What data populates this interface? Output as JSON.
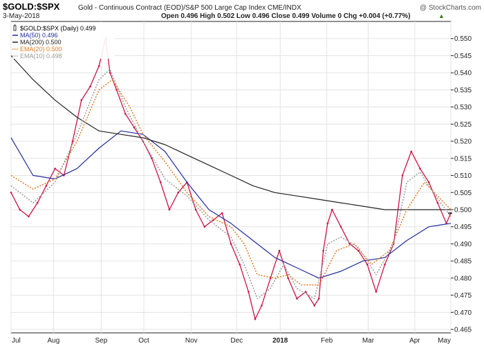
{
  "header": {
    "symbol": "$GOLD:$SPX",
    "description": "Gold - Continuous Contract (EOD)/S&P 500 Large Cap Index  CME/INDX",
    "watermark": "@ StockCharts.com",
    "date": "3-May-2018",
    "quote": "Open 0.496  High 0.502  Low 0.496  Close 0.499  Volume 0  Chg +0.004 (+0.77%)",
    "quote_color": "#3a7a1f",
    "up_arrow": "▲"
  },
  "legend": [
    {
      "label": "$GOLD:$SPX (Daily) 0.499",
      "color": "#000000",
      "style": "candle"
    },
    {
      "label": "MA(50) 0.496",
      "color": "#1f2a9c",
      "style": "solid"
    },
    {
      "label": "MA(200) 0.500",
      "color": "#222222",
      "style": "solid"
    },
    {
      "label": "EMA(20) 0.500",
      "color": "#e07a1f",
      "style": "dotted"
    },
    {
      "label": "EMA(10) 0.498",
      "color": "#999999",
      "style": "dotted"
    }
  ],
  "chart_data": {
    "type": "line",
    "y_ticks": [
      "0.465",
      "0.470",
      "0.475",
      "0.480",
      "0.485",
      "0.490",
      "0.495",
      "0.500",
      "0.505",
      "0.510",
      "0.515",
      "0.520",
      "0.525",
      "0.530",
      "0.535",
      "0.540",
      "0.545",
      "0.550"
    ],
    "ylim": [
      0.464,
      0.555
    ],
    "x_ticks": [
      {
        "label": "Jul",
        "t": 0.0,
        "bold": false
      },
      {
        "label": "Aug",
        "t": 0.0965,
        "bold": false
      },
      {
        "label": "Sep",
        "t": 0.205,
        "bold": false
      },
      {
        "label": "Oct",
        "t": 0.302,
        "bold": false
      },
      {
        "label": "Nov",
        "t": 0.41,
        "bold": false
      },
      {
        "label": "Dec",
        "t": 0.513,
        "bold": false
      },
      {
        "label": "2018",
        "t": 0.612,
        "bold": true
      },
      {
        "label": "Feb",
        "t": 0.718,
        "bold": false
      },
      {
        "label": "Mar",
        "t": 0.812,
        "bold": false
      },
      {
        "label": "Apr",
        "t": 0.918,
        "bold": false
      },
      {
        "label": "May",
        "t": 1.0,
        "bold": false
      }
    ],
    "grid": true,
    "series": [
      {
        "name": "$GOLD:$SPX",
        "color": "#cc1144",
        "points": [
          [
            0.0,
            0.505
          ],
          [
            0.02,
            0.5
          ],
          [
            0.04,
            0.498
          ],
          [
            0.06,
            0.502
          ],
          [
            0.08,
            0.507
          ],
          [
            0.1,
            0.512
          ],
          [
            0.12,
            0.51
          ],
          [
            0.14,
            0.52
          ],
          [
            0.16,
            0.532
          ],
          [
            0.18,
            0.536
          ],
          [
            0.2,
            0.542
          ],
          [
            0.215,
            0.55
          ],
          [
            0.225,
            0.54
          ],
          [
            0.24,
            0.535
          ],
          [
            0.26,
            0.528
          ],
          [
            0.28,
            0.524
          ],
          [
            0.3,
            0.52
          ],
          [
            0.32,
            0.515
          ],
          [
            0.34,
            0.508
          ],
          [
            0.36,
            0.5
          ],
          [
            0.38,
            0.505
          ],
          [
            0.4,
            0.508
          ],
          [
            0.42,
            0.5
          ],
          [
            0.44,
            0.495
          ],
          [
            0.46,
            0.497
          ],
          [
            0.48,
            0.499
          ],
          [
            0.5,
            0.49
          ],
          [
            0.52,
            0.484
          ],
          [
            0.54,
            0.476
          ],
          [
            0.555,
            0.468
          ],
          [
            0.57,
            0.472
          ],
          [
            0.59,
            0.48
          ],
          [
            0.61,
            0.488
          ],
          [
            0.63,
            0.48
          ],
          [
            0.65,
            0.474
          ],
          [
            0.67,
            0.476
          ],
          [
            0.69,
            0.472
          ],
          [
            0.7,
            0.474
          ],
          [
            0.71,
            0.488
          ],
          [
            0.72,
            0.496
          ],
          [
            0.73,
            0.5
          ],
          [
            0.75,
            0.495
          ],
          [
            0.77,
            0.49
          ],
          [
            0.79,
            0.488
          ],
          [
            0.81,
            0.484
          ],
          [
            0.83,
            0.476
          ],
          [
            0.85,
            0.484
          ],
          [
            0.87,
            0.49
          ],
          [
            0.89,
            0.51
          ],
          [
            0.91,
            0.517
          ],
          [
            0.93,
            0.512
          ],
          [
            0.95,
            0.508
          ],
          [
            0.97,
            0.502
          ],
          [
            0.99,
            0.496
          ],
          [
            1.0,
            0.499
          ]
        ]
      },
      {
        "name": "MA(50)",
        "color": "#1f2a9c",
        "points": [
          [
            0.0,
            0.521
          ],
          [
            0.05,
            0.51
          ],
          [
            0.1,
            0.509
          ],
          [
            0.15,
            0.512
          ],
          [
            0.2,
            0.518
          ],
          [
            0.25,
            0.523
          ],
          [
            0.3,
            0.522
          ],
          [
            0.35,
            0.517
          ],
          [
            0.4,
            0.508
          ],
          [
            0.45,
            0.5
          ],
          [
            0.5,
            0.496
          ],
          [
            0.55,
            0.491
          ],
          [
            0.6,
            0.486
          ],
          [
            0.65,
            0.483
          ],
          [
            0.7,
            0.48
          ],
          [
            0.75,
            0.482
          ],
          [
            0.8,
            0.485
          ],
          [
            0.85,
            0.486
          ],
          [
            0.9,
            0.491
          ],
          [
            0.95,
            0.495
          ],
          [
            1.0,
            0.496
          ]
        ]
      },
      {
        "name": "MA(200)",
        "color": "#222222",
        "points": [
          [
            0.0,
            0.545
          ],
          [
            0.05,
            0.538
          ],
          [
            0.1,
            0.532
          ],
          [
            0.15,
            0.527
          ],
          [
            0.2,
            0.523
          ],
          [
            0.25,
            0.522
          ],
          [
            0.3,
            0.521
          ],
          [
            0.35,
            0.519
          ],
          [
            0.4,
            0.516
          ],
          [
            0.45,
            0.513
          ],
          [
            0.5,
            0.51
          ],
          [
            0.55,
            0.507
          ],
          [
            0.6,
            0.505
          ],
          [
            0.65,
            0.504
          ],
          [
            0.7,
            0.503
          ],
          [
            0.75,
            0.502
          ],
          [
            0.8,
            0.501
          ],
          [
            0.85,
            0.5
          ],
          [
            0.9,
            0.5
          ],
          [
            0.95,
            0.5
          ],
          [
            1.0,
            0.5
          ]
        ]
      },
      {
        "name": "EMA(20)",
        "color": "#e07a1f",
        "points": [
          [
            0.0,
            0.51
          ],
          [
            0.05,
            0.506
          ],
          [
            0.1,
            0.509
          ],
          [
            0.15,
            0.52
          ],
          [
            0.2,
            0.535
          ],
          [
            0.23,
            0.538
          ],
          [
            0.27,
            0.53
          ],
          [
            0.3,
            0.522
          ],
          [
            0.35,
            0.514
          ],
          [
            0.4,
            0.505
          ],
          [
            0.45,
            0.498
          ],
          [
            0.5,
            0.495
          ],
          [
            0.53,
            0.49
          ],
          [
            0.56,
            0.481
          ],
          [
            0.6,
            0.48
          ],
          [
            0.63,
            0.481
          ],
          [
            0.66,
            0.478
          ],
          [
            0.7,
            0.478
          ],
          [
            0.74,
            0.488
          ],
          [
            0.78,
            0.49
          ],
          [
            0.82,
            0.484
          ],
          [
            0.86,
            0.488
          ],
          [
            0.9,
            0.5
          ],
          [
            0.94,
            0.508
          ],
          [
            0.97,
            0.504
          ],
          [
            1.0,
            0.5
          ]
        ]
      },
      {
        "name": "EMA(10)",
        "color": "#999999",
        "points": [
          [
            0.0,
            0.507
          ],
          [
            0.05,
            0.502
          ],
          [
            0.1,
            0.508
          ],
          [
            0.15,
            0.522
          ],
          [
            0.2,
            0.538
          ],
          [
            0.225,
            0.541
          ],
          [
            0.26,
            0.53
          ],
          [
            0.3,
            0.52
          ],
          [
            0.35,
            0.509
          ],
          [
            0.4,
            0.504
          ],
          [
            0.45,
            0.497
          ],
          [
            0.5,
            0.492
          ],
          [
            0.53,
            0.484
          ],
          [
            0.56,
            0.474
          ],
          [
            0.59,
            0.477
          ],
          [
            0.62,
            0.484
          ],
          [
            0.65,
            0.477
          ],
          [
            0.69,
            0.474
          ],
          [
            0.72,
            0.49
          ],
          [
            0.75,
            0.492
          ],
          [
            0.79,
            0.489
          ],
          [
            0.83,
            0.481
          ],
          [
            0.87,
            0.49
          ],
          [
            0.9,
            0.508
          ],
          [
            0.93,
            0.511
          ],
          [
            0.96,
            0.505
          ],
          [
            1.0,
            0.498
          ]
        ]
      },
      {
        "name": "Close",
        "color": "#222222",
        "points": [
          [
            1.0,
            0.499
          ]
        ]
      }
    ]
  }
}
